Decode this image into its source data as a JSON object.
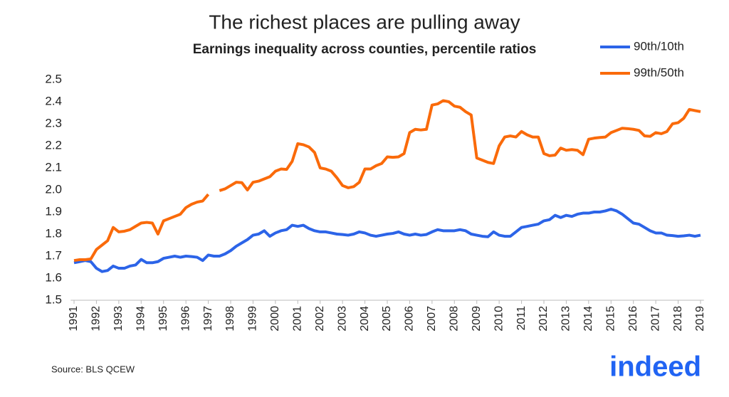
{
  "chart_data": {
    "type": "line",
    "title": "The richest places are pulling away",
    "subtitle": "Earnings inequality across counties, percentile ratios",
    "source": "Source: BLS QCEW",
    "logo": "indeed",
    "legend": "top-right",
    "x": [
      1991,
      1991.25,
      1991.5,
      1991.75,
      1992,
      1992.25,
      1992.5,
      1992.75,
      1993,
      1993.25,
      1993.5,
      1993.75,
      1994,
      1994.25,
      1994.5,
      1994.75,
      1995,
      1995.25,
      1995.5,
      1995.75,
      1996,
      1996.25,
      1996.5,
      1996.75,
      1997,
      1997.25,
      1997.5,
      1997.75,
      1998,
      1998.25,
      1998.5,
      1998.75,
      1999,
      1999.25,
      1999.5,
      1999.75,
      2000,
      2000.25,
      2000.5,
      2000.75,
      2001,
      2001.25,
      2001.5,
      2001.75,
      2002,
      2002.25,
      2002.5,
      2002.75,
      2003,
      2003.25,
      2003.5,
      2003.75,
      2004,
      2004.25,
      2004.5,
      2004.75,
      2005,
      2005.25,
      2005.5,
      2005.75,
      2006,
      2006.25,
      2006.5,
      2006.75,
      2007,
      2007.25,
      2007.5,
      2007.75,
      2008,
      2008.25,
      2008.5,
      2008.75,
      2009,
      2009.25,
      2009.5,
      2009.75,
      2010,
      2010.25,
      2010.5,
      2010.75,
      2011,
      2011.25,
      2011.5,
      2011.75,
      2012,
      2012.25,
      2012.5,
      2012.75,
      2013,
      2013.25,
      2013.5,
      2013.75,
      2014,
      2014.25,
      2014.5,
      2014.75,
      2015,
      2015.25,
      2015.5,
      2015.75,
      2016,
      2016.25,
      2016.5,
      2016.75,
      2017,
      2017.25,
      2017.5,
      2017.75,
      2018,
      2018.25,
      2018.5,
      2018.75,
      2019
    ],
    "series": [
      {
        "name": "90th/10th",
        "color": "#2c64e8",
        "values": [
          1.67,
          1.675,
          1.68,
          1.675,
          1.645,
          1.63,
          1.635,
          1.655,
          1.645,
          1.645,
          1.655,
          1.66,
          1.685,
          1.67,
          1.67,
          1.675,
          1.69,
          1.695,
          1.7,
          1.695,
          1.7,
          1.698,
          1.695,
          1.68,
          1.705,
          1.7,
          1.7,
          1.71,
          1.725,
          1.745,
          1.76,
          1.775,
          1.795,
          1.8,
          1.815,
          1.79,
          1.805,
          1.815,
          1.82,
          1.84,
          1.835,
          1.84,
          1.825,
          1.815,
          1.81,
          1.81,
          1.805,
          1.8,
          1.798,
          1.795,
          1.8,
          1.81,
          1.805,
          1.795,
          1.79,
          1.795,
          1.8,
          1.803,
          1.81,
          1.8,
          1.795,
          1.8,
          1.795,
          1.798,
          1.81,
          1.82,
          1.815,
          1.815,
          1.815,
          1.82,
          1.815,
          1.8,
          1.795,
          1.79,
          1.788,
          1.81,
          1.795,
          1.79,
          1.79,
          1.81,
          1.83,
          1.835,
          1.84,
          1.845,
          1.86,
          1.865,
          1.885,
          1.875,
          1.885,
          1.88,
          1.89,
          1.895,
          1.895,
          1.9,
          1.9,
          1.905,
          1.913,
          1.905,
          1.89,
          1.87,
          1.85,
          1.845,
          1.83,
          1.815,
          1.805,
          1.805,
          1.795,
          1.793,
          1.79,
          1.792,
          1.795,
          1.79,
          1.795
        ]
      },
      {
        "name": "99th/50th",
        "color": "#fa6a0a",
        "values": [
          1.68,
          1.684,
          1.684,
          1.687,
          1.73,
          1.75,
          1.77,
          1.83,
          1.81,
          1.813,
          1.82,
          1.835,
          1.85,
          1.853,
          1.85,
          1.8,
          1.86,
          1.87,
          1.88,
          1.89,
          1.92,
          1.935,
          1.945,
          1.95,
          1.98,
          null,
          1.997,
          2.005,
          2.02,
          2.035,
          2.033,
          2.0,
          2.035,
          2.04,
          2.05,
          2.06,
          2.085,
          2.095,
          2.093,
          2.13,
          2.21,
          2.205,
          2.195,
          2.17,
          2.1,
          2.095,
          2.085,
          2.055,
          2.02,
          2.01,
          2.015,
          2.035,
          2.095,
          2.095,
          2.11,
          2.12,
          2.15,
          2.148,
          2.15,
          2.165,
          2.26,
          2.275,
          2.272,
          2.275,
          2.385,
          2.39,
          2.405,
          2.4,
          2.38,
          2.375,
          2.355,
          2.34,
          2.145,
          2.135,
          2.125,
          2.12,
          2.2,
          2.24,
          2.245,
          2.24,
          2.265,
          2.25,
          2.24,
          2.24,
          2.165,
          2.155,
          2.158,
          2.19,
          2.18,
          2.183,
          2.18,
          2.16,
          2.23,
          2.235,
          2.238,
          2.24,
          2.26,
          2.27,
          2.28,
          2.278,
          2.275,
          2.27,
          2.245,
          2.243,
          2.26,
          2.255,
          2.265,
          2.3,
          2.305,
          2.325,
          2.365,
          2.36,
          2.355
        ]
      }
    ],
    "xlim": [
      1990.85,
      2019.15
    ],
    "xticks": [
      1991,
      1992,
      1993,
      1994,
      1995,
      1996,
      1997,
      1998,
      1999,
      2000,
      2001,
      2002,
      2003,
      2004,
      2005,
      2006,
      2007,
      2008,
      2009,
      2010,
      2011,
      2012,
      2013,
      2014,
      2015,
      2016,
      2017,
      2018,
      2019
    ],
    "ylim": [
      1.5,
      2.5
    ],
    "yticks": [
      1.5,
      1.6,
      1.7,
      1.8,
      1.9,
      {
        "value": 2,
        "label": "2.0"
      },
      2.1,
      2.2,
      2.3,
      2.4,
      2.5
    ],
    "grid": false
  }
}
